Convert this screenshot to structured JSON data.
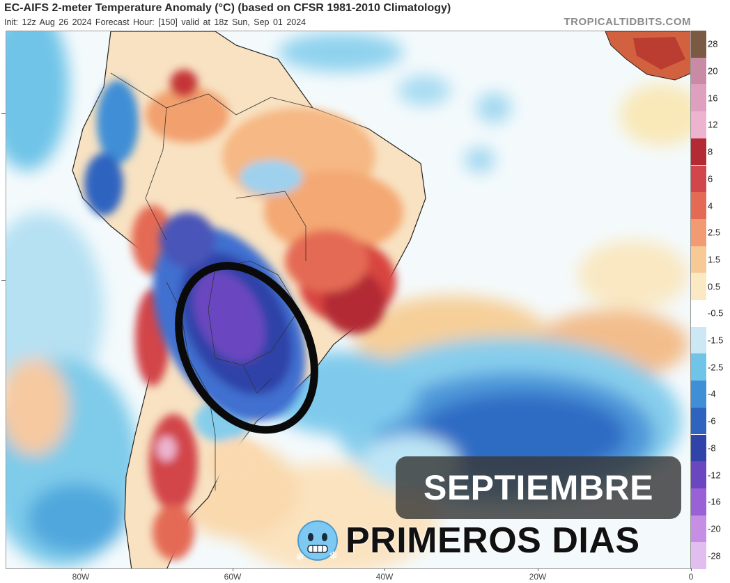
{
  "header": {
    "title": "EC-AIFS 2-meter Temperature Anomaly (°C) (based on CFSR 1981-2010 Climatology)",
    "subtitle": "Init: 12z Aug 26 2024   Forecast Hour: [150]   valid at 18z Sun, Sep 01 2024",
    "brand": "TROPICALTIDBITS.COM"
  },
  "colorbar": {
    "labels": [
      "28",
      "20",
      "16",
      "12",
      "8",
      "6",
      "4",
      "2.5",
      "1.5",
      "0.5",
      "-0.5",
      "-1.5",
      "-2.5",
      "-4",
      "-6",
      "-8",
      "-12",
      "-16",
      "-20",
      "-28"
    ],
    "colors": [
      "#7b5a44",
      "#c98aa6",
      "#dfa0c0",
      "#eeb4cf",
      "#b32a34",
      "#d2454a",
      "#e46a55",
      "#f29a72",
      "#f7c994",
      "#fbe9c3",
      "#ffffff",
      "#cbe8f4",
      "#6fc4e8",
      "#3f8fd6",
      "#2f63c0",
      "#2f43a8",
      "#6a46c0",
      "#9a60d6",
      "#c78ee6",
      "#e1bdf0"
    ]
  },
  "xaxis": {
    "labels": [
      "80W",
      "60W",
      "40W",
      "20W",
      "0"
    ]
  },
  "banner": {
    "line1": "SEPTIEMBRE",
    "line2": "PRIMEROS DIAS",
    "emoji": "cold-face-emoji"
  },
  "map": {
    "annotation": "black-ellipse",
    "region": "South America"
  }
}
